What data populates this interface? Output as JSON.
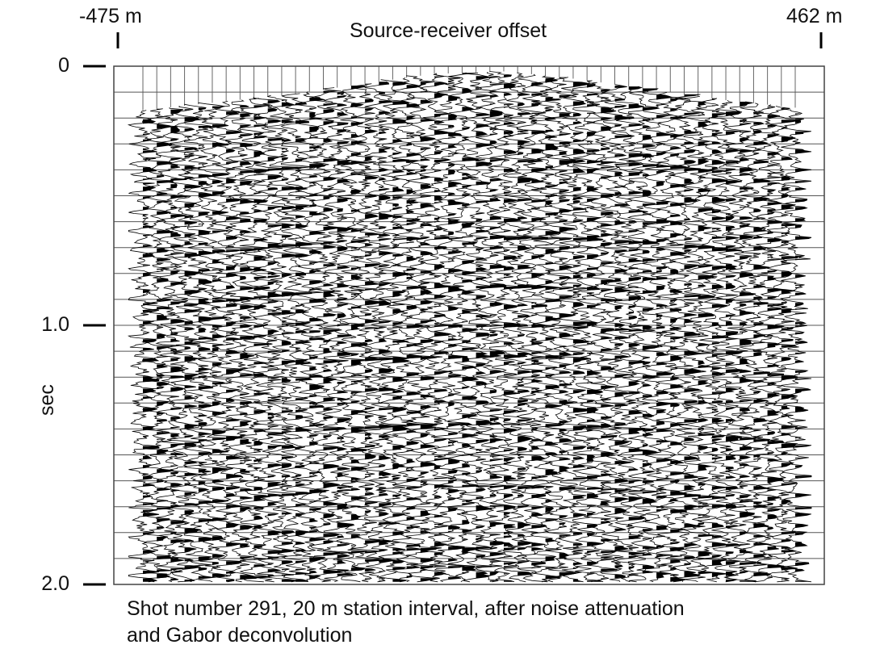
{
  "chart_data": {
    "type": "seismic-wiggle",
    "title": "Source-receiver offset",
    "xlabel": "Source-receiver offset",
    "x_range_labels": [
      "-475 m",
      "462 m"
    ],
    "x_range": [
      -475,
      462
    ],
    "x_unit": "m",
    "station_interval_m": 20,
    "ylabel": "sec",
    "y_ticks": [
      {
        "value": 0,
        "label": "0"
      },
      {
        "value": 1.0,
        "label": "1.0"
      },
      {
        "value": 2.0,
        "label": "2.0"
      }
    ],
    "ylim": [
      0,
      2.0
    ],
    "y_inverted": true,
    "grid": true,
    "first_break_times_sec": [
      0.17,
      0.14,
      0.11,
      0.07,
      0.03,
      0.02,
      0.05,
      0.09,
      0.13,
      0.16
    ],
    "caption": "Shot number 291, 20 m station interval, after noise attenuation and Gabor deconvolution",
    "caption_lines": [
      "Shot number 291, 20 m station interval, after noise attenuation",
      "and Gabor deconvolution"
    ]
  }
}
